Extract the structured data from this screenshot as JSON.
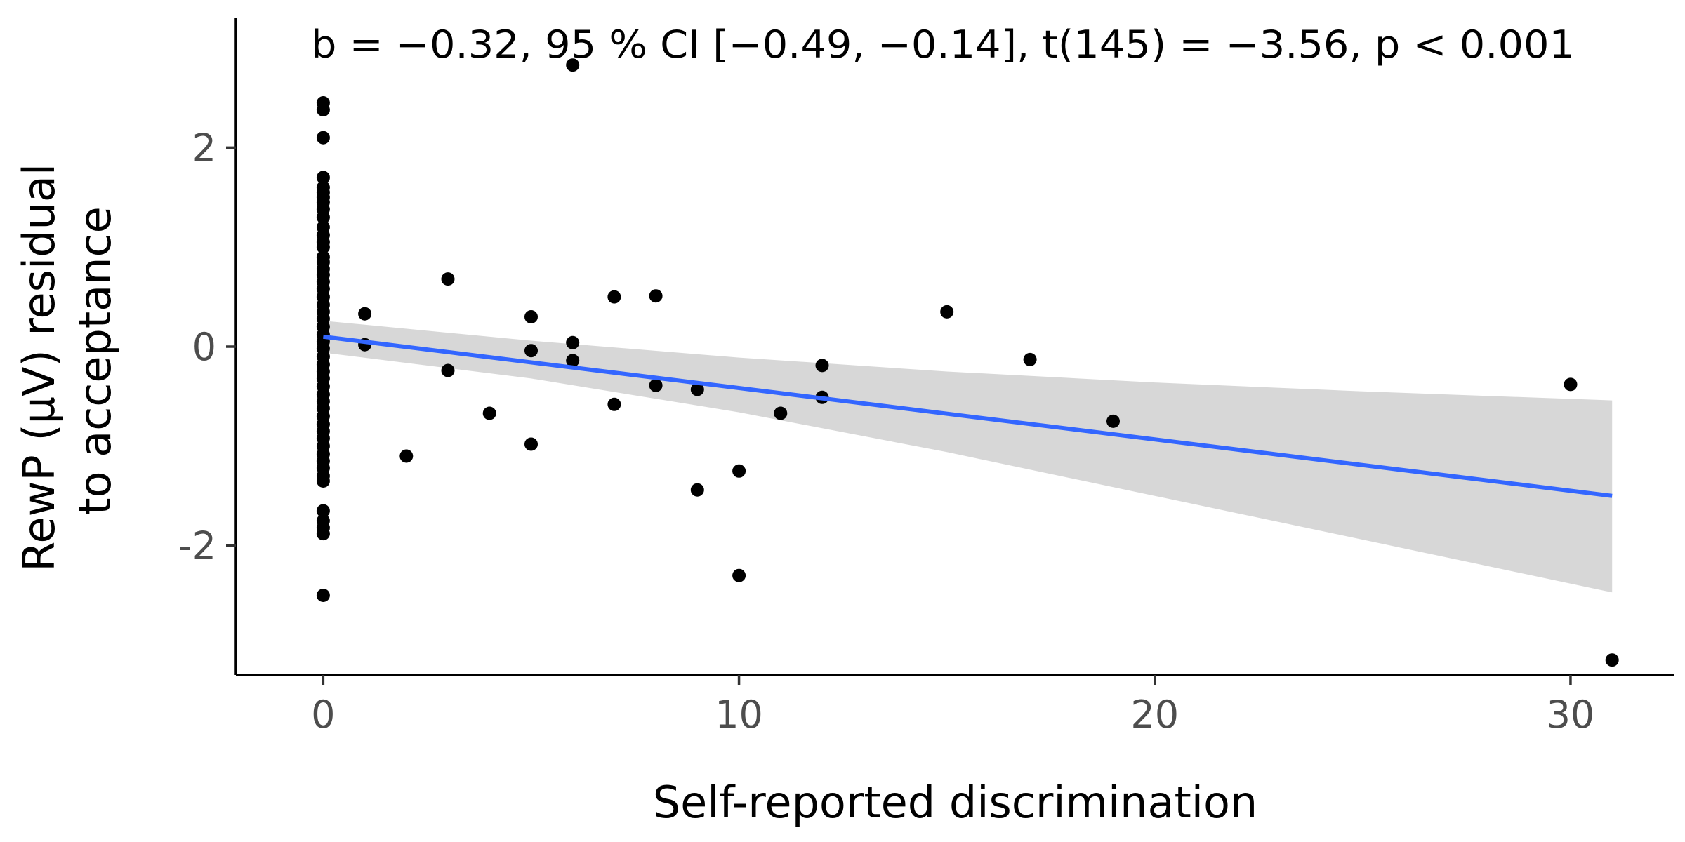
{
  "chart_data": {
    "type": "scatter",
    "annotation": "b = −0.32, 95 %  CI [−0.49, −0.14], t(145) = −3.56, p < 0.001",
    "xlabel": "Self-reported discrimination",
    "ylabel_lines": [
      "RewP (µV) residual",
      "to acceptance"
    ],
    "xlim": [
      -2.1,
      32.5
    ],
    "ylim": [
      -3.3,
      3.3
    ],
    "x_ticks": [
      {
        "value": 0,
        "label": "0"
      },
      {
        "value": 10,
        "label": "10"
      },
      {
        "value": 20,
        "label": "20"
      },
      {
        "value": 30,
        "label": "30"
      }
    ],
    "y_ticks": [
      {
        "value": -2,
        "label": "-2"
      },
      {
        "value": 0,
        "label": "0"
      },
      {
        "value": 2,
        "label": "2"
      }
    ],
    "grid": false,
    "colors": {
      "points": "#000000",
      "fit_line": "#3366ff",
      "ci_band": "#d3d3d3",
      "axis": "#000000",
      "tick_label": "#4d4d4d"
    },
    "points": [
      {
        "x": 0,
        "y": 2.45
      },
      {
        "x": 0,
        "y": 2.38
      },
      {
        "x": 0,
        "y": 2.1
      },
      {
        "x": 0,
        "y": 1.7
      },
      {
        "x": 0,
        "y": 1.6
      },
      {
        "x": 0,
        "y": 1.55
      },
      {
        "x": 0,
        "y": 1.5
      },
      {
        "x": 0,
        "y": 1.45
      },
      {
        "x": 0,
        "y": 1.38
      },
      {
        "x": 0,
        "y": 1.3
      },
      {
        "x": 0,
        "y": 1.2
      },
      {
        "x": 0,
        "y": 1.12
      },
      {
        "x": 0,
        "y": 1.05
      },
      {
        "x": 0,
        "y": 1.0
      },
      {
        "x": 0,
        "y": 0.9
      },
      {
        "x": 0,
        "y": 0.85
      },
      {
        "x": 0,
        "y": 0.78
      },
      {
        "x": 0,
        "y": 0.72
      },
      {
        "x": 0,
        "y": 0.65
      },
      {
        "x": 0,
        "y": 0.58
      },
      {
        "x": 0,
        "y": 0.5
      },
      {
        "x": 0,
        "y": 0.42
      },
      {
        "x": 0,
        "y": 0.35
      },
      {
        "x": 0,
        "y": 0.28
      },
      {
        "x": 0,
        "y": 0.2
      },
      {
        "x": 0,
        "y": 0.12
      },
      {
        "x": 0,
        "y": 0.05
      },
      {
        "x": 0,
        "y": -0.02
      },
      {
        "x": 0,
        "y": -0.1
      },
      {
        "x": 0,
        "y": -0.18
      },
      {
        "x": 0,
        "y": -0.25
      },
      {
        "x": 0,
        "y": -0.32
      },
      {
        "x": 0,
        "y": -0.4
      },
      {
        "x": 0,
        "y": -0.48
      },
      {
        "x": 0,
        "y": -0.55
      },
      {
        "x": 0,
        "y": -0.62
      },
      {
        "x": 0,
        "y": -0.7
      },
      {
        "x": 0,
        "y": -0.78
      },
      {
        "x": 0,
        "y": -0.85
      },
      {
        "x": 0,
        "y": -0.92
      },
      {
        "x": 0,
        "y": -1.0
      },
      {
        "x": 0,
        "y": -1.08
      },
      {
        "x": 0,
        "y": -1.15
      },
      {
        "x": 0,
        "y": -1.22
      },
      {
        "x": 0,
        "y": -1.3
      },
      {
        "x": 0,
        "y": -1.35
      },
      {
        "x": 0,
        "y": -1.65
      },
      {
        "x": 0,
        "y": -1.75
      },
      {
        "x": 0,
        "y": -1.82
      },
      {
        "x": 0,
        "y": -1.88
      },
      {
        "x": 0,
        "y": -2.5
      },
      {
        "x": 1,
        "y": 0.33
      },
      {
        "x": 1,
        "y": 0.02
      },
      {
        "x": 2,
        "y": -1.1
      },
      {
        "x": 3,
        "y": 0.68
      },
      {
        "x": 3,
        "y": -0.24
      },
      {
        "x": 4,
        "y": -0.67
      },
      {
        "x": 5,
        "y": 0.3
      },
      {
        "x": 5,
        "y": -0.04
      },
      {
        "x": 5,
        "y": -0.98
      },
      {
        "x": 6,
        "y": 2.83
      },
      {
        "x": 6,
        "y": 0.04
      },
      {
        "x": 6,
        "y": -0.14
      },
      {
        "x": 7,
        "y": 0.5
      },
      {
        "x": 7,
        "y": -0.58
      },
      {
        "x": 8,
        "y": 0.51
      },
      {
        "x": 8,
        "y": -0.39
      },
      {
        "x": 9,
        "y": -0.43
      },
      {
        "x": 9,
        "y": -1.44
      },
      {
        "x": 10,
        "y": -1.25
      },
      {
        "x": 10,
        "y": -2.3
      },
      {
        "x": 11,
        "y": -0.67
      },
      {
        "x": 12,
        "y": -0.19
      },
      {
        "x": 12,
        "y": -0.51
      },
      {
        "x": 15,
        "y": 0.35
      },
      {
        "x": 17,
        "y": -0.13
      },
      {
        "x": 19,
        "y": -0.75
      },
      {
        "x": 30,
        "y": -0.38
      },
      {
        "x": 31,
        "y": -3.15
      }
    ],
    "fit_line": {
      "x": [
        0,
        31
      ],
      "y": [
        0.1,
        -1.5
      ]
    },
    "ci_band": {
      "x": [
        0,
        5,
        10,
        15,
        20,
        25,
        31
      ],
      "lower": [
        -0.06,
        -0.32,
        -0.66,
        -1.06,
        -1.5,
        -1.94,
        -2.47
      ],
      "upper": [
        0.26,
        0.06,
        -0.11,
        -0.25,
        -0.36,
        -0.45,
        -0.54
      ]
    }
  }
}
